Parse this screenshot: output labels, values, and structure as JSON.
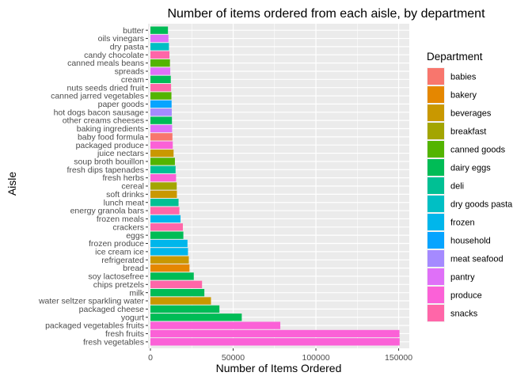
{
  "chart_data": {
    "type": "bar",
    "orientation": "horizontal",
    "title": "Number of items ordered from each aisle, by department",
    "xlabel": "Number of Items Ordered",
    "ylabel": "Aisle",
    "xlim": [
      0,
      155000
    ],
    "xticks": [
      0,
      50000,
      100000,
      150000
    ],
    "xtick_labels": [
      "0",
      "50000",
      "100000",
      "150000"
    ],
    "grid": true,
    "legend_position": "right",
    "legend_title": "Department",
    "departments": [
      {
        "name": "babies",
        "color": "#F8766D"
      },
      {
        "name": "bakery",
        "color": "#E58700"
      },
      {
        "name": "beverages",
        "color": "#C99800"
      },
      {
        "name": "breakfast",
        "color": "#A3A500"
      },
      {
        "name": "canned goods",
        "color": "#53B400"
      },
      {
        "name": "dairy eggs",
        "color": "#00BC56"
      },
      {
        "name": "deli",
        "color": "#00C094"
      },
      {
        "name": "dry goods pasta",
        "color": "#00BFC4"
      },
      {
        "name": "frozen",
        "color": "#00B6EB"
      },
      {
        "name": "household",
        "color": "#06A4FF"
      },
      {
        "name": "meat seafood",
        "color": "#A58AFF"
      },
      {
        "name": "pantry",
        "color": "#DF70F8"
      },
      {
        "name": "produce",
        "color": "#FB61D7"
      },
      {
        "name": "snacks",
        "color": "#FF66A8"
      }
    ],
    "bars": [
      {
        "aisle": "butter",
        "value": 10600,
        "department": "dairy eggs"
      },
      {
        "aisle": "oils vinegars",
        "value": 10900,
        "department": "pantry"
      },
      {
        "aisle": "dry pasta",
        "value": 11200,
        "department": "dry goods pasta"
      },
      {
        "aisle": "candy chocolate",
        "value": 11500,
        "department": "snacks"
      },
      {
        "aisle": "canned meals beans",
        "value": 11800,
        "department": "canned goods"
      },
      {
        "aisle": "spreads",
        "value": 12000,
        "department": "pantry"
      },
      {
        "aisle": "cream",
        "value": 12300,
        "department": "dairy eggs"
      },
      {
        "aisle": "nuts seeds dried fruit",
        "value": 12500,
        "department": "snacks"
      },
      {
        "aisle": "canned jarred vegetables",
        "value": 12700,
        "department": "canned goods"
      },
      {
        "aisle": "paper goods",
        "value": 12800,
        "department": "household"
      },
      {
        "aisle": "hot dogs bacon sausage",
        "value": 12900,
        "department": "meat seafood"
      },
      {
        "aisle": "other creams cheeses",
        "value": 13000,
        "department": "dairy eggs"
      },
      {
        "aisle": "baking ingredients",
        "value": 13100,
        "department": "pantry"
      },
      {
        "aisle": "baby food formula",
        "value": 13300,
        "department": "babies"
      },
      {
        "aisle": "packaged produce",
        "value": 13500,
        "department": "produce"
      },
      {
        "aisle": "juice nectars",
        "value": 14000,
        "department": "beverages"
      },
      {
        "aisle": "soup broth bouillon",
        "value": 14800,
        "department": "canned goods"
      },
      {
        "aisle": "fresh dips tapenades",
        "value": 15200,
        "department": "deli"
      },
      {
        "aisle": "fresh herbs",
        "value": 15500,
        "department": "produce"
      },
      {
        "aisle": "cereal",
        "value": 15900,
        "department": "breakfast"
      },
      {
        "aisle": "soft drinks",
        "value": 16000,
        "department": "beverages"
      },
      {
        "aisle": "lunch meat",
        "value": 17000,
        "department": "deli"
      },
      {
        "aisle": "energy granola bars",
        "value": 17500,
        "department": "snacks"
      },
      {
        "aisle": "frozen meals",
        "value": 18200,
        "department": "frozen"
      },
      {
        "aisle": "crackers",
        "value": 19600,
        "department": "snacks"
      },
      {
        "aisle": "eggs",
        "value": 19900,
        "department": "dairy eggs"
      },
      {
        "aisle": "frozen produce",
        "value": 22400,
        "department": "frozen"
      },
      {
        "aisle": "ice cream ice",
        "value": 22700,
        "department": "frozen"
      },
      {
        "aisle": "refrigerated",
        "value": 23200,
        "department": "beverages"
      },
      {
        "aisle": "bread",
        "value": 23600,
        "department": "bakery"
      },
      {
        "aisle": "soy lactosefree",
        "value": 26200,
        "department": "dairy eggs"
      },
      {
        "aisle": "chips pretzels",
        "value": 31200,
        "department": "snacks"
      },
      {
        "aisle": "milk",
        "value": 32600,
        "department": "dairy eggs"
      },
      {
        "aisle": "water seltzer sparkling water",
        "value": 36600,
        "department": "beverages"
      },
      {
        "aisle": "packaged cheese",
        "value": 41700,
        "department": "dairy eggs"
      },
      {
        "aisle": "yogurt",
        "value": 55200,
        "department": "dairy eggs"
      },
      {
        "aisle": "packaged vegetables fruits",
        "value": 78500,
        "department": "produce"
      },
      {
        "aisle": "fresh fruits",
        "value": 150500,
        "department": "produce"
      },
      {
        "aisle": "fresh vegetables",
        "value": 150600,
        "department": "produce"
      }
    ]
  }
}
